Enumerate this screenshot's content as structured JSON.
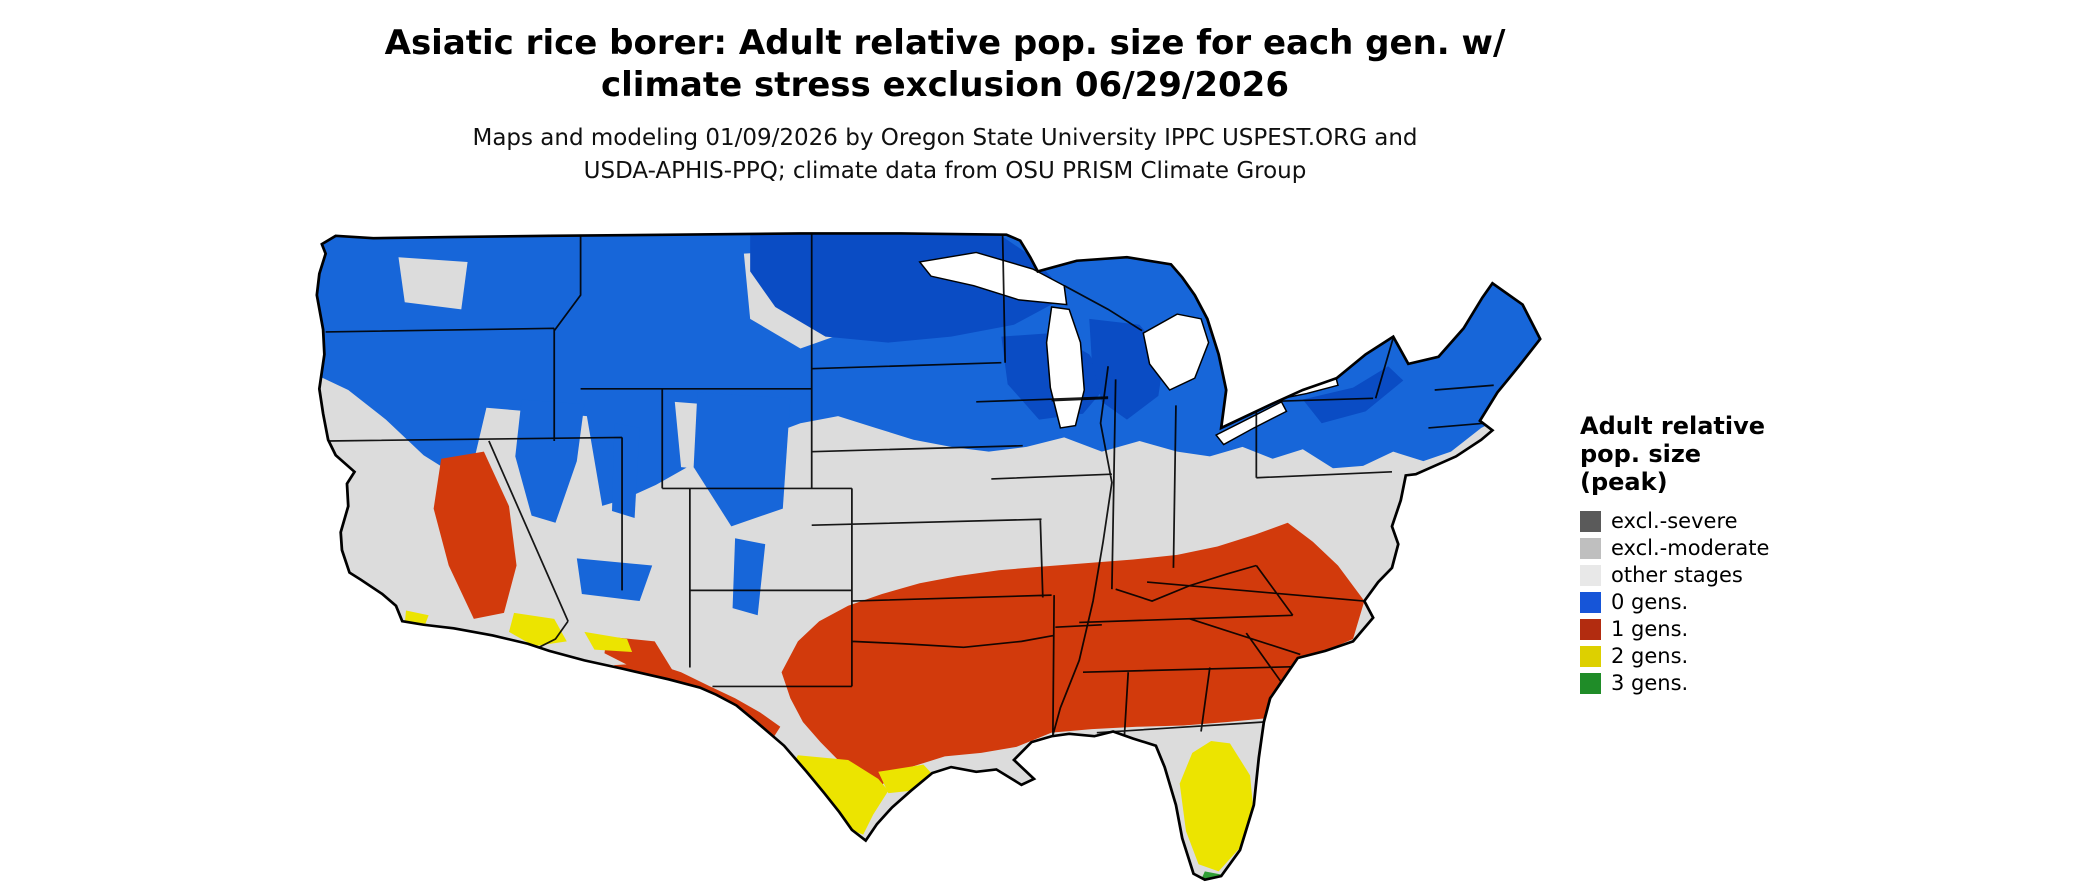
{
  "header": {
    "title_line1": "Asiatic rice borer: Adult relative pop. size for each gen. w/",
    "title_line2": "climate stress exclusion 06/29/2026",
    "subtitle_line1": "Maps and modeling 01/09/2026 by Oregon State University IPPC USPEST.ORG and",
    "subtitle_line2": "USDA-APHIS-PPQ; climate data from OSU PRISM Climate Group"
  },
  "legend": {
    "title_line1": "Adult relative",
    "title_line2": "pop. size",
    "title_line3": "(peak)",
    "items": [
      {
        "label": "excl.-severe",
        "color": "#5a5a5a"
      },
      {
        "label": "excl.-moderate",
        "color": "#bfbfbf"
      },
      {
        "label": "other stages",
        "color": "#e8e8e8"
      },
      {
        "label": "0 gens.",
        "color": "#1655d8"
      },
      {
        "label": "1 gens.",
        "color": "#b22c10"
      },
      {
        "label": "2 gens.",
        "color": "#ddd000"
      },
      {
        "label": "3 gens.",
        "color": "#1f8c28"
      }
    ]
  },
  "map": {
    "type": "choropleth",
    "region": "Contiguous United States with state boundaries",
    "colors": {
      "base_other_stages": "#dcdcdc",
      "gen0": "#1766d9",
      "gen0_dark": "#0a4cc4",
      "gen1": "#d23a0c",
      "gen2": "#ece400",
      "gen3": "#2f9e35",
      "water": "#ffffff"
    },
    "zones": [
      {
        "label": "0 gens.",
        "color_key": "gen0",
        "areas": "Northern tier states, Great Lakes, New England, Rockies, Sierra Nevada"
      },
      {
        "label": "other stages",
        "color_key": "base_other_stages",
        "areas": "Central band of the US, Great Basin, coastal strips"
      },
      {
        "label": "1 gens.",
        "color_key": "gen1",
        "areas": "Southern band from the Carolinas through the Gulf states to Texas, southern Arizona/New Mexico border, central California"
      },
      {
        "label": "2 gens.",
        "color_key": "gen2",
        "areas": "South Texas, Florida peninsula, far southern California and Arizona lowlands"
      },
      {
        "label": "3 gens.",
        "color_key": "gen3",
        "areas": "Southern tip of Florida"
      }
    ]
  }
}
